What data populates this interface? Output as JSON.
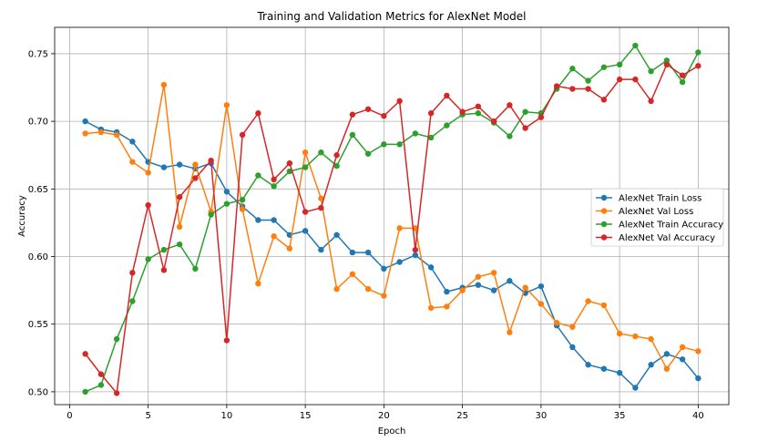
{
  "chart_data": {
    "type": "line",
    "title": "Training and Validation Metrics for AlexNet Model",
    "xlabel": "Epoch",
    "ylabel": "Accuracy",
    "xlim": [
      -0.95,
      41.95
    ],
    "ylim": [
      0.4905,
      0.7695
    ],
    "xticks": [
      0,
      5,
      10,
      15,
      20,
      25,
      30,
      35,
      40
    ],
    "yticks": [
      0.5,
      0.55,
      0.6,
      0.65,
      0.7,
      0.75
    ],
    "ytick_labels": [
      "0.50",
      "0.55",
      "0.60",
      "0.65",
      "0.70",
      "0.75"
    ],
    "grid": true,
    "legend_position": "center-right",
    "x": [
      1,
      2,
      3,
      4,
      5,
      6,
      7,
      8,
      9,
      10,
      11,
      12,
      13,
      14,
      15,
      16,
      17,
      18,
      19,
      20,
      21,
      22,
      23,
      24,
      25,
      26,
      27,
      28,
      29,
      30,
      31,
      32,
      33,
      34,
      35,
      36,
      37,
      38,
      39,
      40
    ],
    "series": [
      {
        "name": "AlexNet Train Loss",
        "color": "#1f77b4",
        "values": [
          0.7,
          0.694,
          0.692,
          0.685,
          0.67,
          0.666,
          0.668,
          0.665,
          0.669,
          0.648,
          0.637,
          0.627,
          0.627,
          0.616,
          0.619,
          0.605,
          0.616,
          0.603,
          0.603,
          0.591,
          0.596,
          0.601,
          0.592,
          0.574,
          0.577,
          0.579,
          0.575,
          0.582,
          0.573,
          0.578,
          0.549,
          0.533,
          0.52,
          0.517,
          0.514,
          0.503,
          0.52,
          0.528,
          0.524,
          0.51
        ]
      },
      {
        "name": "AlexNet Val Loss",
        "color": "#ff7f0e",
        "values": [
          0.691,
          0.692,
          0.69,
          0.67,
          0.662,
          0.727,
          0.622,
          0.668,
          0.633,
          0.712,
          0.635,
          0.58,
          0.615,
          0.606,
          0.677,
          0.643,
          0.576,
          0.587,
          0.576,
          0.571,
          0.621,
          0.621,
          0.562,
          0.563,
          0.575,
          0.585,
          0.588,
          0.544,
          0.577,
          0.565,
          0.551,
          0.548,
          0.567,
          0.564,
          0.543,
          0.541,
          0.539,
          0.517,
          0.533,
          0.53
        ]
      },
      {
        "name": "AlexNet Train Accuracy",
        "color": "#2ca02c",
        "values": [
          0.5,
          0.505,
          0.539,
          0.567,
          0.598,
          0.605,
          0.609,
          0.591,
          0.631,
          0.639,
          0.642,
          0.66,
          0.652,
          0.663,
          0.666,
          0.677,
          0.667,
          0.69,
          0.676,
          0.683,
          0.683,
          0.691,
          0.688,
          0.697,
          0.705,
          0.706,
          0.699,
          0.689,
          0.707,
          0.706,
          0.724,
          0.739,
          0.73,
          0.74,
          0.742,
          0.756,
          0.737,
          0.745,
          0.729,
          0.751
        ]
      },
      {
        "name": "AlexNet Val Accuracy",
        "color": "#d62728",
        "values": [
          0.528,
          0.513,
          0.499,
          0.588,
          0.638,
          0.59,
          0.644,
          0.658,
          0.671,
          0.538,
          0.69,
          0.706,
          0.657,
          0.669,
          0.633,
          0.636,
          0.675,
          0.705,
          0.709,
          0.704,
          0.715,
          0.605,
          0.706,
          0.719,
          0.707,
          0.711,
          0.7,
          0.712,
          0.695,
          0.703,
          0.726,
          0.724,
          0.724,
          0.716,
          0.731,
          0.731,
          0.715,
          0.742,
          0.734,
          0.741
        ]
      }
    ]
  }
}
